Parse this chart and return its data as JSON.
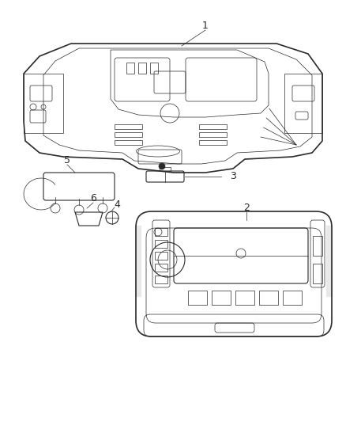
{
  "background_color": "#ffffff",
  "line_color": "#2a2a2a",
  "label_color": "#2a2a2a",
  "lw_main": 1.2,
  "lw_mid": 0.8,
  "lw_thin": 0.5,
  "figsize": [
    4.38,
    5.33
  ],
  "dpi": 100
}
